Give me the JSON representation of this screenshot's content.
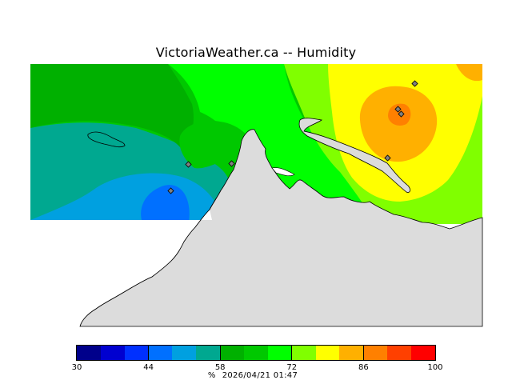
{
  "title": "VictoriaWeather.ca -- Humidity",
  "legend": {
    "colors": [
      "#00008b",
      "#0000d0",
      "#0030ff",
      "#0070ff",
      "#00a0e0",
      "#00a890",
      "#00b000",
      "#00c800",
      "#00ff00",
      "#80ff00",
      "#ffff00",
      "#ffb000",
      "#ff8000",
      "#ff4000",
      "#ff0000"
    ],
    "ticks": [
      {
        "label": "30",
        "value": 30
      },
      {
        "label": "44",
        "value": 44
      },
      {
        "label": "58",
        "value": 58
      },
      {
        "label": "72",
        "value": 72
      },
      {
        "label": "86",
        "value": 86
      },
      {
        "label": "100",
        "value": 100
      }
    ],
    "min": 30,
    "max": 100
  },
  "footer": {
    "unit": "%",
    "timestamp": "2026/04/21 01:47"
  },
  "map_colors": {
    "land": "#dcdcdc",
    "coastline": "#000000"
  }
}
